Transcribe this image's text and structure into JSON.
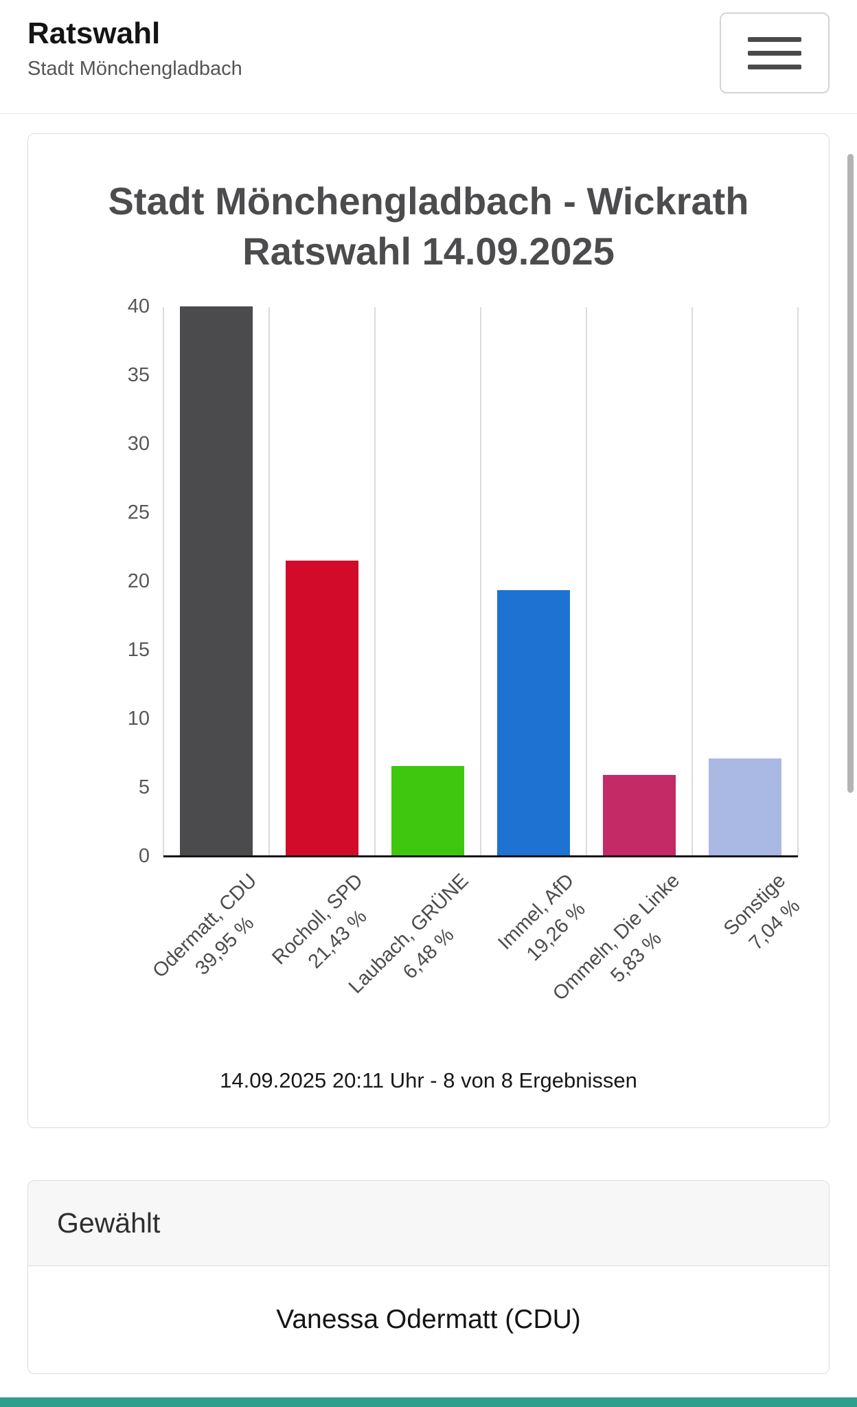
{
  "header": {
    "title": "Ratswahl",
    "subtitle": "Stadt Mönchengladbach"
  },
  "chart_data": {
    "type": "bar",
    "title_lines": [
      "Stadt Mönchengladbach - Wickrath",
      "Ratswahl 14.09.2025"
    ],
    "categories": [
      "Odermatt, CDU",
      "Rocholl, SPD",
      "Laubach, GRÜNE",
      "Immel, AfD",
      "Ommeln, Die Linke",
      "Sonstige"
    ],
    "value_labels": [
      "39,95 %",
      "21,43 %",
      "6,48 %",
      "19,26 %",
      "5,83 %",
      "7,04 %"
    ],
    "values": [
      39.95,
      21.43,
      6.48,
      19.26,
      5.83,
      7.04
    ],
    "bar_colors": [
      "#4b4b4d",
      "#d20b2b",
      "#3ec70e",
      "#1d72d2",
      "#c42a66",
      "#aab9e4"
    ],
    "ylim": [
      0,
      40
    ],
    "yticks": [
      0,
      5,
      10,
      15,
      20,
      25,
      30,
      35,
      40
    ],
    "grid": "vertical",
    "legend": "none",
    "xlabel": "",
    "ylabel": "",
    "caption": "14.09.2025 20:11 Uhr - 8 von 8 Ergebnissen"
  },
  "elected": {
    "header": "Gewählt",
    "name": "Vanessa Odermatt (CDU)"
  },
  "colors": {
    "footer_strip": "#2e9e8e",
    "axis": "#151515",
    "grid_line": "#dbdbdb",
    "scrollbar": "#b4b4b4"
  }
}
